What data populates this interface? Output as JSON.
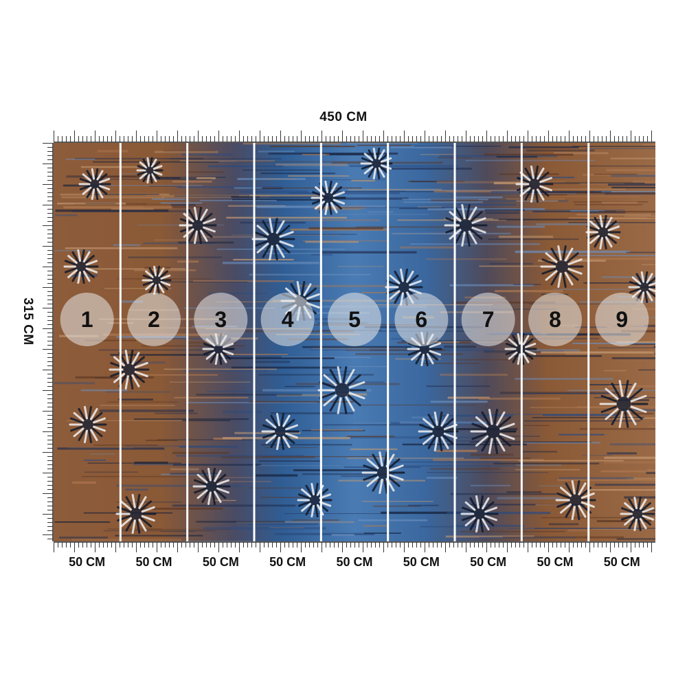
{
  "dimensions": {
    "width_label": "450 CM",
    "height_label": "315 CM"
  },
  "panels": [
    {
      "number": "1",
      "width_label": "50 CM",
      "tone": "brown"
    },
    {
      "number": "2",
      "width_label": "50 CM",
      "tone": "brown"
    },
    {
      "number": "3",
      "width_label": "50 CM",
      "tone": "mixed"
    },
    {
      "number": "4",
      "width_label": "50 CM",
      "tone": "blue"
    },
    {
      "number": "5",
      "width_label": "50 CM",
      "tone": "blue"
    },
    {
      "number": "6",
      "width_label": "50 CM",
      "tone": "blue"
    },
    {
      "number": "7",
      "width_label": "50 CM",
      "tone": "mixed"
    },
    {
      "number": "8",
      "width_label": "50 CM",
      "tone": "brown"
    },
    {
      "number": "9",
      "width_label": "50 CM",
      "tone": "brown"
    }
  ],
  "colors": {
    "brown": "#8a5a3a",
    "blue": "#3f6ea8",
    "navy": "#1b2a4a",
    "seam": "#ffffff",
    "number_badge": "#e8e8e8"
  }
}
